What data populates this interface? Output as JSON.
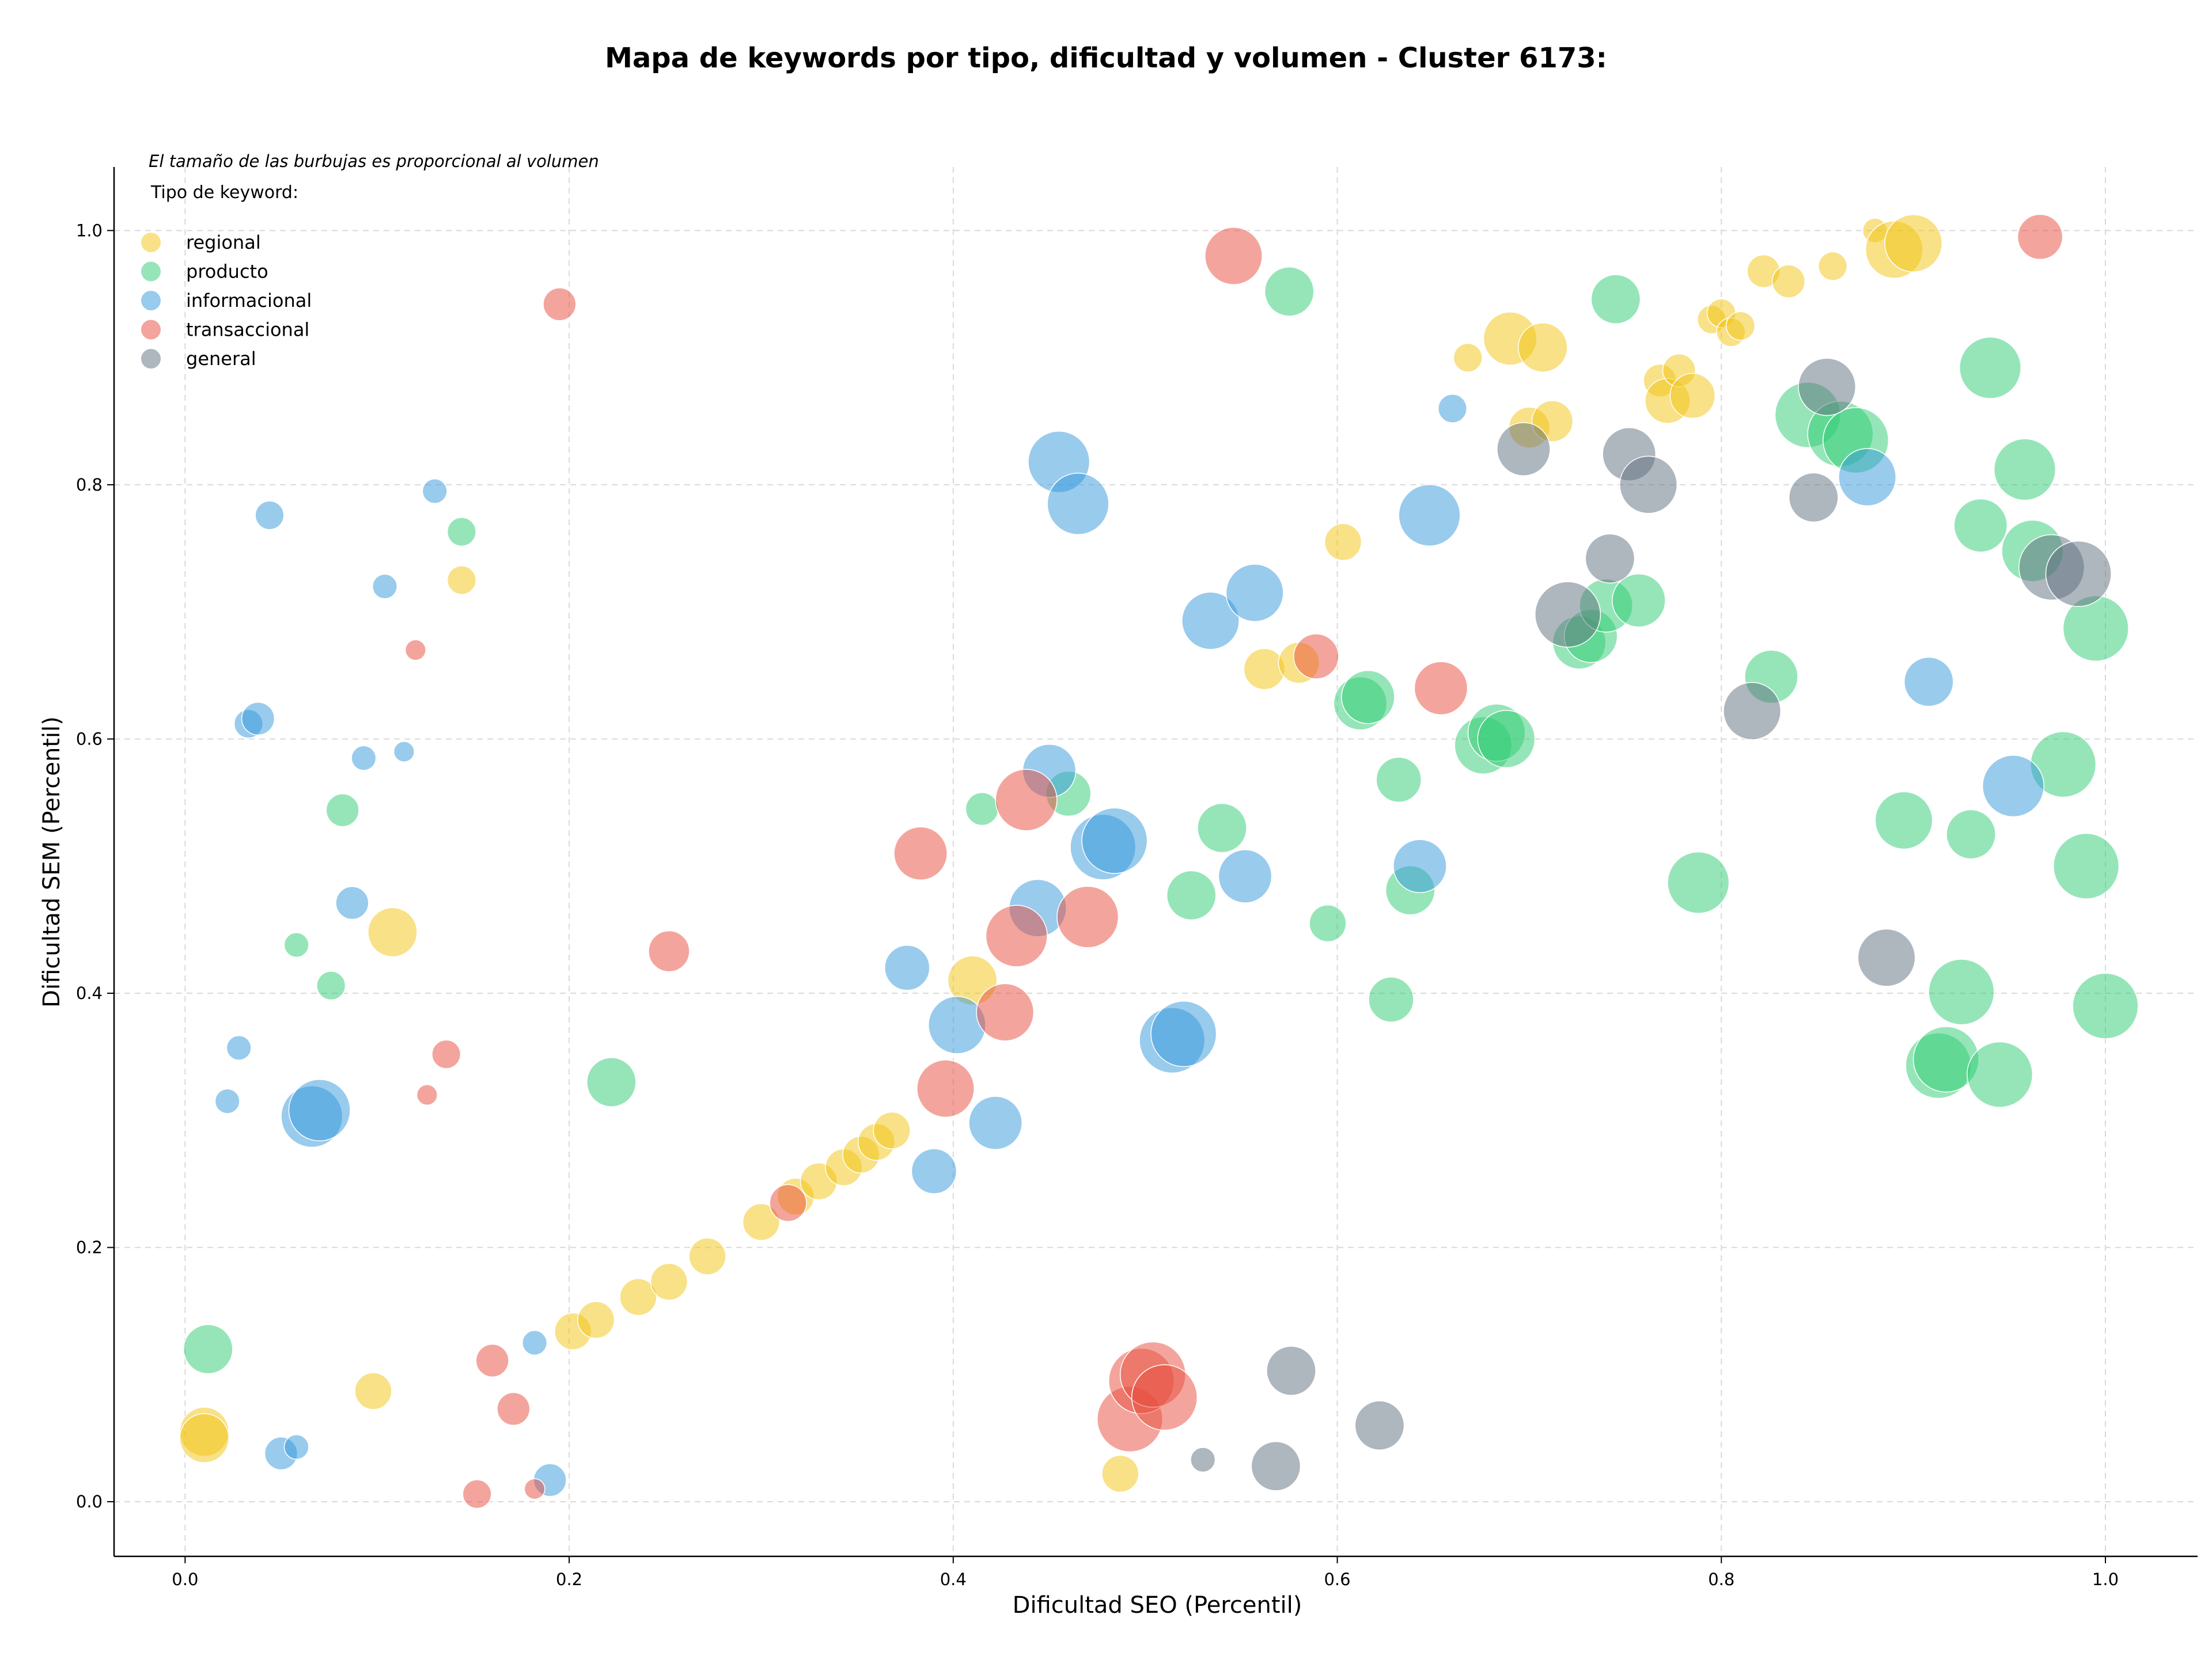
{
  "chart_data": {
    "type": "scatter",
    "title": "Mapa de keywords por tipo, dificultad y volumen - Cluster 6173:",
    "xlabel": "Dificultad SEO (Percentil)",
    "ylabel": "Dificultad SEM (Percentil)",
    "xlim": [
      -0.037,
      1.048
    ],
    "ylim": [
      -0.043,
      1.05
    ],
    "xticks": [
      0.0,
      0.2,
      0.4,
      0.6,
      0.8,
      1.0
    ],
    "yticks": [
      0.0,
      0.2,
      0.4,
      0.6,
      0.8,
      1.0
    ],
    "xtick_labels": [
      "0.0",
      "0.2",
      "0.4",
      "0.6",
      "0.8",
      "1.0"
    ],
    "ytick_labels": [
      "0.0",
      "0.2",
      "0.4",
      "0.6",
      "0.8",
      "1.0"
    ],
    "grid": true,
    "note": "El tamaño de las burbujas es proporcional al volumen",
    "legend_title": "Tipo de keyword:",
    "legend_position": "top-left",
    "size_encoding": "volumen (relativo)",
    "series": [
      {
        "name": "regional",
        "color": "#f1c40f",
        "points": [
          [
            0.01,
            0.055,
            12
          ],
          [
            0.01,
            0.05,
            12
          ],
          [
            0.098,
            0.087,
            9
          ],
          [
            0.108,
            0.448,
            12
          ],
          [
            0.144,
            0.725,
            7
          ],
          [
            0.202,
            0.134,
            9
          ],
          [
            0.214,
            0.143,
            9
          ],
          [
            0.236,
            0.161,
            9
          ],
          [
            0.252,
            0.173,
            9
          ],
          [
            0.272,
            0.193,
            9
          ],
          [
            0.3,
            0.22,
            9
          ],
          [
            0.318,
            0.24,
            9
          ],
          [
            0.33,
            0.252,
            9
          ],
          [
            0.343,
            0.263,
            9
          ],
          [
            0.352,
            0.273,
            9
          ],
          [
            0.36,
            0.283,
            9
          ],
          [
            0.368,
            0.292,
            9
          ],
          [
            0.41,
            0.41,
            12
          ],
          [
            0.487,
            0.022,
            9
          ],
          [
            0.562,
            0.655,
            10
          ],
          [
            0.58,
            0.66,
            10
          ],
          [
            0.603,
            0.755,
            9
          ],
          [
            0.668,
            0.9,
            7
          ],
          [
            0.69,
            0.915,
            13
          ],
          [
            0.707,
            0.908,
            12
          ],
          [
            0.7,
            0.845,
            10
          ],
          [
            0.712,
            0.85,
            10
          ],
          [
            0.768,
            0.882,
            8
          ],
          [
            0.772,
            0.866,
            11
          ],
          [
            0.778,
            0.89,
            8
          ],
          [
            0.785,
            0.87,
            11
          ],
          [
            0.795,
            0.93,
            7
          ],
          [
            0.8,
            0.935,
            7
          ],
          [
            0.805,
            0.92,
            7
          ],
          [
            0.81,
            0.925,
            7
          ],
          [
            0.822,
            0.968,
            8
          ],
          [
            0.835,
            0.96,
            8
          ],
          [
            0.858,
            0.972,
            7
          ],
          [
            0.88,
            1.0,
            6
          ],
          [
            0.89,
            0.985,
            14
          ],
          [
            0.9,
            0.99,
            14
          ]
        ]
      },
      {
        "name": "producto",
        "color": "#2ecc71",
        "points": [
          [
            0.012,
            0.12,
            12
          ],
          [
            0.058,
            0.438,
            6
          ],
          [
            0.076,
            0.406,
            7
          ],
          [
            0.082,
            0.544,
            8
          ],
          [
            0.144,
            0.763,
            7
          ],
          [
            0.222,
            0.33,
            12
          ],
          [
            0.415,
            0.545,
            8
          ],
          [
            0.46,
            0.557,
            11
          ],
          [
            0.524,
            0.477,
            12
          ],
          [
            0.54,
            0.53,
            12
          ],
          [
            0.575,
            0.952,
            12
          ],
          [
            0.595,
            0.455,
            9
          ],
          [
            0.612,
            0.628,
            13
          ],
          [
            0.616,
            0.633,
            13
          ],
          [
            0.628,
            0.395,
            11
          ],
          [
            0.632,
            0.568,
            11
          ],
          [
            0.638,
            0.481,
            12
          ],
          [
            0.676,
            0.595,
            14
          ],
          [
            0.683,
            0.605,
            14
          ],
          [
            0.688,
            0.6,
            14
          ],
          [
            0.726,
            0.676,
            13
          ],
          [
            0.732,
            0.681,
            13
          ],
          [
            0.74,
            0.705,
            13
          ],
          [
            0.745,
            0.946,
            12
          ],
          [
            0.757,
            0.709,
            13
          ],
          [
            0.788,
            0.487,
            15
          ],
          [
            0.826,
            0.649,
            13
          ],
          [
            0.845,
            0.855,
            16
          ],
          [
            0.862,
            0.84,
            16
          ],
          [
            0.87,
            0.835,
            16
          ],
          [
            0.895,
            0.536,
            14
          ],
          [
            0.913,
            0.343,
            16
          ],
          [
            0.917,
            0.348,
            16
          ],
          [
            0.925,
            0.401,
            16
          ],
          [
            0.93,
            0.525,
            12
          ],
          [
            0.935,
            0.768,
            13
          ],
          [
            0.94,
            0.892,
            15
          ],
          [
            0.945,
            0.336,
            16
          ],
          [
            0.958,
            0.812,
            15
          ],
          [
            0.962,
            0.748,
            15
          ],
          [
            0.978,
            0.58,
            16
          ],
          [
            0.99,
            0.5,
            16
          ],
          [
            0.995,
            0.687,
            16
          ],
          [
            1.0,
            0.39,
            16
          ]
        ]
      },
      {
        "name": "informacional",
        "color": "#3498db",
        "points": [
          [
            0.022,
            0.315,
            6
          ],
          [
            0.028,
            0.357,
            6
          ],
          [
            0.033,
            0.612,
            7
          ],
          [
            0.038,
            0.616,
            8
          ],
          [
            0.044,
            0.776,
            7
          ],
          [
            0.05,
            0.038,
            8
          ],
          [
            0.058,
            0.043,
            6
          ],
          [
            0.066,
            0.303,
            15
          ],
          [
            0.07,
            0.308,
            15
          ],
          [
            0.087,
            0.471,
            8
          ],
          [
            0.093,
            0.585,
            6
          ],
          [
            0.104,
            0.72,
            6
          ],
          [
            0.114,
            0.59,
            5
          ],
          [
            0.13,
            0.795,
            6
          ],
          [
            0.182,
            0.125,
            6
          ],
          [
            0.19,
            0.017,
            8
          ],
          [
            0.376,
            0.42,
            11
          ],
          [
            0.39,
            0.26,
            11
          ],
          [
            0.402,
            0.375,
            14
          ],
          [
            0.422,
            0.298,
            13
          ],
          [
            0.444,
            0.467,
            14
          ],
          [
            0.45,
            0.575,
            13
          ],
          [
            0.455,
            0.818,
            15
          ],
          [
            0.465,
            0.785,
            15
          ],
          [
            0.478,
            0.515,
            16
          ],
          [
            0.484,
            0.52,
            16
          ],
          [
            0.514,
            0.363,
            16
          ],
          [
            0.52,
            0.368,
            16
          ],
          [
            0.534,
            0.693,
            14
          ],
          [
            0.552,
            0.492,
            13
          ],
          [
            0.557,
            0.715,
            14
          ],
          [
            0.643,
            0.5,
            13
          ],
          [
            0.648,
            0.776,
            15
          ],
          [
            0.66,
            0.86,
            7
          ],
          [
            0.876,
            0.806,
            14
          ],
          [
            0.908,
            0.645,
            12
          ],
          [
            0.952,
            0.563,
            15
          ]
        ]
      },
      {
        "name": "transaccional",
        "color": "#e74c3c",
        "points": [
          [
            0.12,
            0.67,
            5
          ],
          [
            0.126,
            0.32,
            5
          ],
          [
            0.136,
            0.352,
            7
          ],
          [
            0.152,
            0.006,
            7
          ],
          [
            0.16,
            0.111,
            8
          ],
          [
            0.171,
            0.073,
            8
          ],
          [
            0.182,
            0.01,
            5
          ],
          [
            0.195,
            0.942,
            8
          ],
          [
            0.252,
            0.433,
            10
          ],
          [
            0.314,
            0.235,
            9
          ],
          [
            0.383,
            0.51,
            13
          ],
          [
            0.396,
            0.325,
            14
          ],
          [
            0.427,
            0.385,
            14
          ],
          [
            0.433,
            0.445,
            15
          ],
          [
            0.438,
            0.552,
            15
          ],
          [
            0.47,
            0.46,
            15
          ],
          [
            0.492,
            0.065,
            16
          ],
          [
            0.498,
            0.095,
            16
          ],
          [
            0.504,
            0.1,
            16
          ],
          [
            0.51,
            0.082,
            16
          ],
          [
            0.546,
            0.98,
            14
          ],
          [
            0.589,
            0.665,
            11
          ],
          [
            0.654,
            0.64,
            13
          ],
          [
            0.966,
            0.995,
            11
          ]
        ]
      },
      {
        "name": "general",
        "color": "#5d6d7e",
        "points": [
          [
            0.53,
            0.033,
            6
          ],
          [
            0.568,
            0.028,
            12
          ],
          [
            0.576,
            0.103,
            12
          ],
          [
            0.622,
            0.06,
            12
          ],
          [
            0.697,
            0.828,
            13
          ],
          [
            0.72,
            0.698,
            16
          ],
          [
            0.742,
            0.742,
            12
          ],
          [
            0.752,
            0.824,
            13
          ],
          [
            0.762,
            0.8,
            14
          ],
          [
            0.816,
            0.622,
            14
          ],
          [
            0.848,
            0.79,
            12
          ],
          [
            0.855,
            0.877,
            14
          ],
          [
            0.886,
            0.428,
            14
          ],
          [
            0.972,
            0.735,
            16
          ],
          [
            0.986,
            0.73,
            16
          ]
        ]
      }
    ]
  }
}
